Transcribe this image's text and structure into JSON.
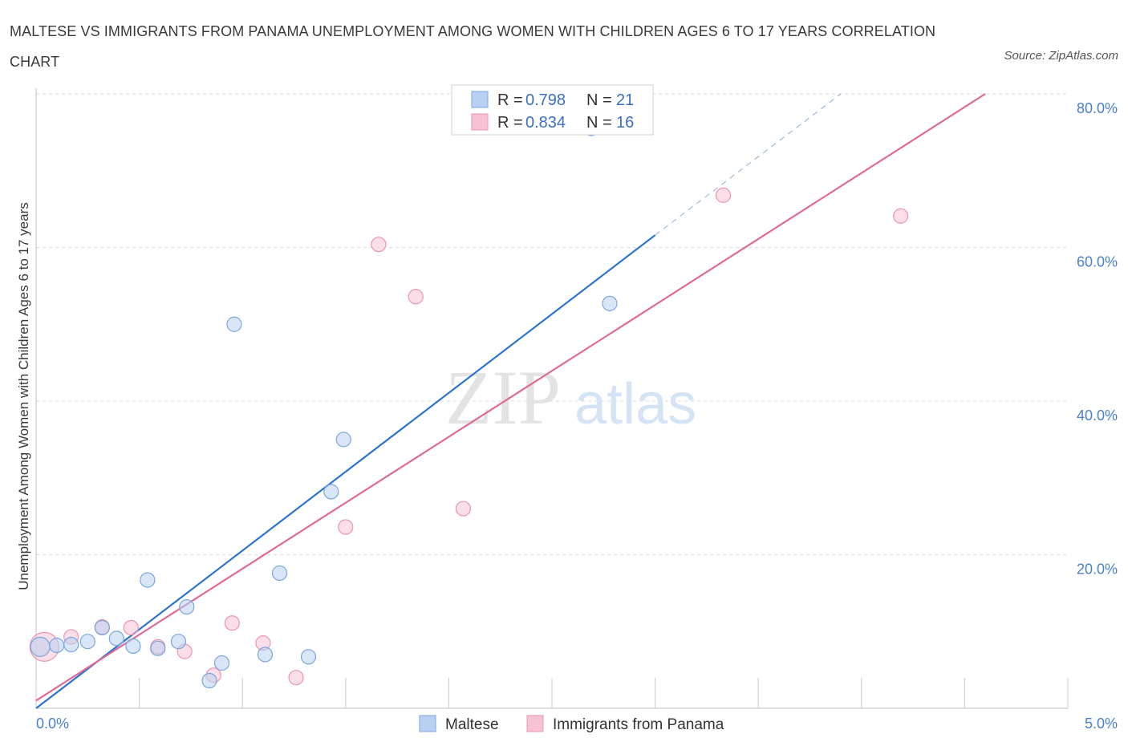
{
  "title": "MALTESE VS IMMIGRANTS FROM PANAMA UNEMPLOYMENT AMONG WOMEN WITH CHILDREN AGES 6 TO 17 YEARS CORRELATION CHART",
  "source": "Source: ZipAtlas.com",
  "watermark": {
    "zip": "ZIP",
    "atlas": "atlas"
  },
  "colors": {
    "maltese_fill": "#b8d1f3",
    "maltese_stroke": "#7aa6de",
    "maltese_line": "#2d73cf",
    "panama_fill": "#f7c3d3",
    "panama_stroke": "#e895b0",
    "panama_line": "#e06a94",
    "grid": "#d9d9d9",
    "tick_label": "#4a7fc9"
  },
  "legend": {
    "maltese": {
      "r_label": "R =",
      "r_value": "0.798",
      "n_label": "N =",
      "n_value": "21"
    },
    "panama": {
      "r_label": "R =",
      "r_value": "0.834",
      "n_label": "N =",
      "n_value": "16"
    }
  },
  "chart_data": {
    "type": "scatter",
    "title": "MALTESE VS IMMIGRANTS FROM PANAMA UNEMPLOYMENT AMONG WOMEN WITH CHILDREN AGES 6 TO 17 YEARS CORRELATION CHART",
    "xlabel": "",
    "ylabel": "Unemployment Among Women with Children Ages 6 to 17 years",
    "xlim": [
      0,
      5
    ],
    "ylim": [
      0,
      80
    ],
    "x_tick_labels": [
      "0.0%",
      "5.0%"
    ],
    "y_ticks": [
      20,
      40,
      60,
      80
    ],
    "y_tick_labels": [
      "20.0%",
      "40.0%",
      "60.0%",
      "80.0%"
    ],
    "series": [
      {
        "name": "Maltese",
        "points": [
          {
            "x": 0.02,
            "y": 8.0,
            "r": 12
          },
          {
            "x": 0.1,
            "y": 8.2,
            "r": 9
          },
          {
            "x": 0.17,
            "y": 8.3,
            "r": 9
          },
          {
            "x": 0.25,
            "y": 8.7,
            "r": 9
          },
          {
            "x": 0.32,
            "y": 10.5,
            "r": 9
          },
          {
            "x": 0.39,
            "y": 9.1,
            "r": 9
          },
          {
            "x": 0.47,
            "y": 8.1,
            "r": 9
          },
          {
            "x": 0.54,
            "y": 16.7,
            "r": 9
          },
          {
            "x": 0.59,
            "y": 7.8,
            "r": 9
          },
          {
            "x": 0.69,
            "y": 8.7,
            "r": 9
          },
          {
            "x": 0.73,
            "y": 13.2,
            "r": 9
          },
          {
            "x": 0.84,
            "y": 3.6,
            "r": 9
          },
          {
            "x": 0.9,
            "y": 5.9,
            "r": 9
          },
          {
            "x": 0.96,
            "y": 50.0,
            "r": 9
          },
          {
            "x": 1.11,
            "y": 7.0,
            "r": 9
          },
          {
            "x": 1.18,
            "y": 17.6,
            "r": 9
          },
          {
            "x": 1.32,
            "y": 6.7,
            "r": 9
          },
          {
            "x": 1.43,
            "y": 28.2,
            "r": 9
          },
          {
            "x": 1.49,
            "y": 35.0,
            "r": 9
          },
          {
            "x": 2.69,
            "y": 75.5,
            "r": 9
          },
          {
            "x": 2.78,
            "y": 52.7,
            "r": 9
          }
        ],
        "trend": {
          "x0": 0.0,
          "y0": 0.0,
          "x1": 3.0,
          "y1": 61.6,
          "dash_x1": 3.9,
          "dash_y1": 80.0
        }
      },
      {
        "name": "Immigrants from Panama",
        "points": [
          {
            "x": 0.04,
            "y": 8.0,
            "r": 18
          },
          {
            "x": 0.17,
            "y": 9.3,
            "r": 9
          },
          {
            "x": 0.32,
            "y": 10.6,
            "r": 9
          },
          {
            "x": 0.46,
            "y": 10.5,
            "r": 9
          },
          {
            "x": 0.59,
            "y": 8.0,
            "r": 9
          },
          {
            "x": 0.72,
            "y": 7.4,
            "r": 9
          },
          {
            "x": 0.86,
            "y": 4.3,
            "r": 9
          },
          {
            "x": 0.95,
            "y": 11.1,
            "r": 9
          },
          {
            "x": 1.1,
            "y": 8.5,
            "r": 9
          },
          {
            "x": 1.26,
            "y": 4.0,
            "r": 9
          },
          {
            "x": 1.5,
            "y": 23.6,
            "r": 9
          },
          {
            "x": 1.66,
            "y": 60.4,
            "r": 9
          },
          {
            "x": 1.84,
            "y": 53.6,
            "r": 9
          },
          {
            "x": 2.07,
            "y": 26.0,
            "r": 9
          },
          {
            "x": 3.33,
            "y": 66.8,
            "r": 9
          },
          {
            "x": 4.19,
            "y": 64.1,
            "r": 9
          }
        ],
        "trend": {
          "x0": 0.0,
          "y0": 1.0,
          "x1": 4.6,
          "y1": 80.0
        }
      }
    ]
  },
  "bottom_legend": {
    "maltese": "Maltese",
    "panama": "Immigrants from Panama"
  }
}
